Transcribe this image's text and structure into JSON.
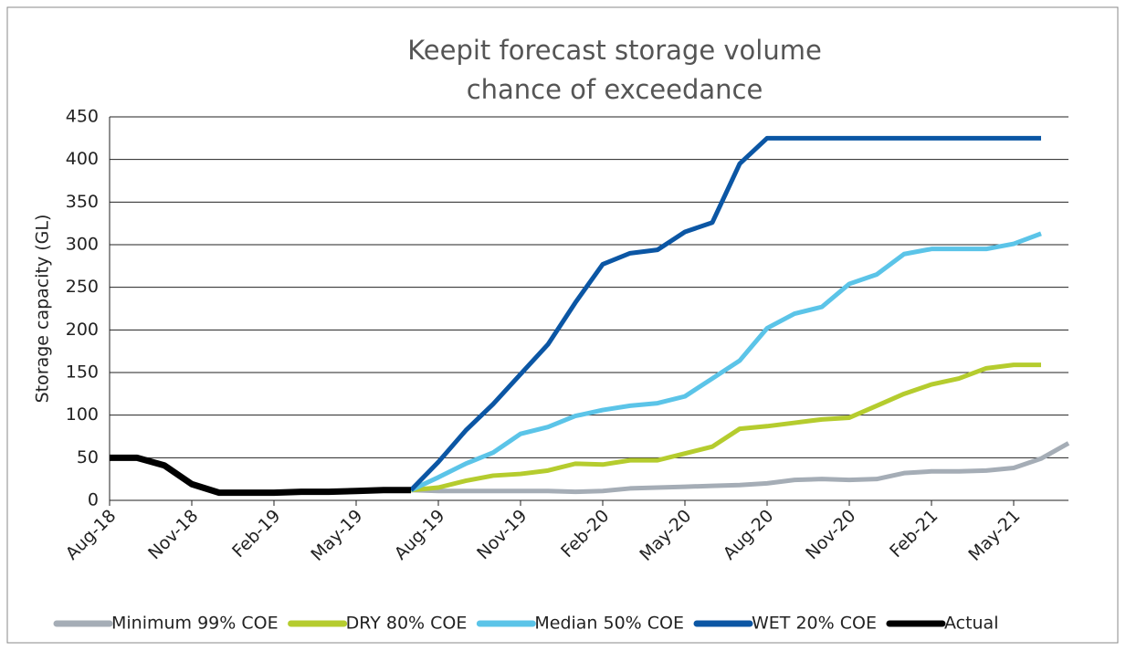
{
  "chart_data": {
    "type": "line",
    "title": [
      "Keepit forecast storage volume",
      "chance of exceedance"
    ],
    "y_label": "Storage capacity (GL)",
    "categories": [
      "Aug-18",
      null,
      null,
      "Nov-18",
      null,
      null,
      "Feb-19",
      null,
      null,
      "May-19",
      null,
      null,
      "Aug-19",
      null,
      null,
      "Nov-19",
      null,
      null,
      "Feb-20",
      null,
      null,
      "May-20",
      null,
      null,
      "Aug-20",
      null,
      null,
      "Nov-20",
      null,
      null,
      "Feb-21",
      null,
      null,
      "May-21",
      null,
      null
    ],
    "series": [
      {
        "name": "Minimum 99% COE",
        "color": "#a5adb6",
        "values": [
          null,
          null,
          null,
          null,
          null,
          null,
          null,
          null,
          null,
          null,
          null,
          12,
          11,
          11,
          11,
          11,
          11,
          10,
          11,
          14,
          15,
          16,
          17,
          18,
          20,
          24,
          25,
          24,
          25,
          32,
          34,
          34,
          35,
          38,
          49,
          67
        ]
      },
      {
        "name": "DRY 80% COE",
        "color": "#b5cc2e",
        "values": [
          null,
          null,
          null,
          null,
          null,
          null,
          null,
          null,
          null,
          null,
          null,
          12,
          15,
          23,
          29,
          31,
          35,
          43,
          42,
          47,
          47,
          55,
          63,
          84,
          87,
          91,
          95,
          97,
          111,
          125,
          136,
          143,
          155,
          159,
          159,
          null
        ]
      },
      {
        "name": "Median 50% COE",
        "color": "#5bc4e8",
        "values": [
          null,
          null,
          null,
          null,
          null,
          null,
          null,
          null,
          null,
          null,
          null,
          12,
          27,
          43,
          56,
          78,
          86,
          99,
          106,
          111,
          114,
          122,
          143,
          164,
          202,
          219,
          227,
          254,
          265,
          289,
          295,
          295,
          295,
          301,
          313,
          null
        ]
      },
      {
        "name": "WET 20% COE",
        "color": "#0b56a4",
        "values": [
          null,
          null,
          null,
          null,
          null,
          null,
          null,
          null,
          null,
          null,
          null,
          12,
          45,
          82,
          113,
          148,
          183,
          232,
          277,
          290,
          294,
          315,
          326,
          395,
          425,
          425,
          425,
          425,
          425,
          425,
          425,
          425,
          425,
          425,
          425,
          null
        ]
      },
      {
        "name": "Actual",
        "color": "#000000",
        "values": [
          50,
          50,
          41,
          19,
          9,
          9,
          9,
          10,
          10,
          11,
          12,
          12,
          null,
          null,
          null,
          null,
          null,
          null,
          null,
          null,
          null,
          null,
          null,
          null,
          null,
          null,
          null,
          null,
          null,
          null,
          null,
          null,
          null,
          null,
          null,
          null
        ]
      }
    ],
    "ylim": [
      0,
      450
    ],
    "yticks": [
      0,
      50,
      100,
      150,
      200,
      250,
      300,
      350,
      400,
      450
    ],
    "grid": true,
    "legend": "bottom"
  }
}
